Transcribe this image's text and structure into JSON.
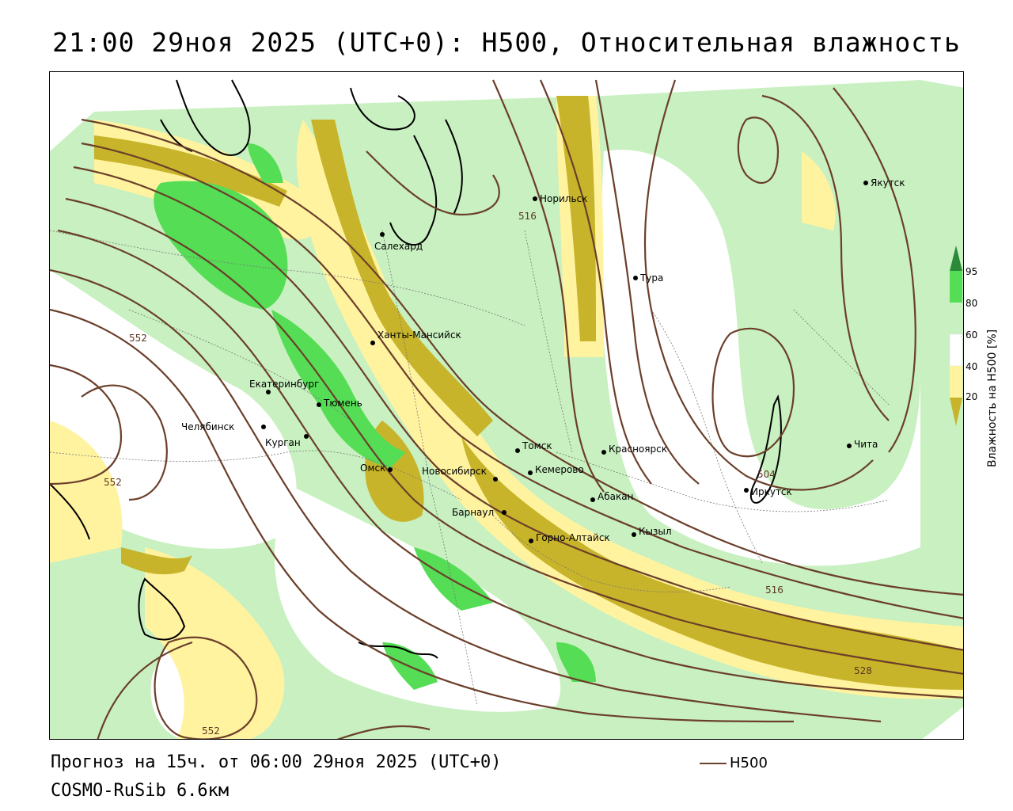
{
  "title": "21:00 29ноя 2025 (UTC+0): H500, Относительная влажность",
  "footer": {
    "forecast": "Прогноз на 15ч. от 06:00 29ноя 2025 (UTC+0)",
    "model": "COSMO-RuSib 6.6км"
  },
  "legend": {
    "h500_label": "H500",
    "h500_color": "#6b3f2a",
    "colorbar_title": "Влажность на H500 [%]",
    "ticks": [
      "95",
      "80",
      "60",
      "40",
      "20"
    ],
    "colors": {
      "very_dry": "#c8b42a",
      "dry": "#fff3a0",
      "moist": "#c8f0c0",
      "wet": "#55dd55",
      "saturated": "#2a8a3a"
    }
  },
  "cities": [
    {
      "name": "Норильск"
    },
    {
      "name": "Якутск"
    },
    {
      "name": "Салехард"
    },
    {
      "name": "Тура"
    },
    {
      "name": "Ханты-Мансийск"
    },
    {
      "name": "Екатеринбург"
    },
    {
      "name": "Тюмень"
    },
    {
      "name": "Челябинск"
    },
    {
      "name": "Курган"
    },
    {
      "name": "Омск"
    },
    {
      "name": "Новосибирск"
    },
    {
      "name": "Томск"
    },
    {
      "name": "Кемерово"
    },
    {
      "name": "Красноярск"
    },
    {
      "name": "Абакан"
    },
    {
      "name": "Барнаул"
    },
    {
      "name": "Горно-Алтайск"
    },
    {
      "name": "Кызыл"
    },
    {
      "name": "Иркутск"
    },
    {
      "name": "Чита"
    }
  ],
  "isolines": [
    "516",
    "552",
    "552",
    "552",
    "504",
    "516",
    "528"
  ]
}
